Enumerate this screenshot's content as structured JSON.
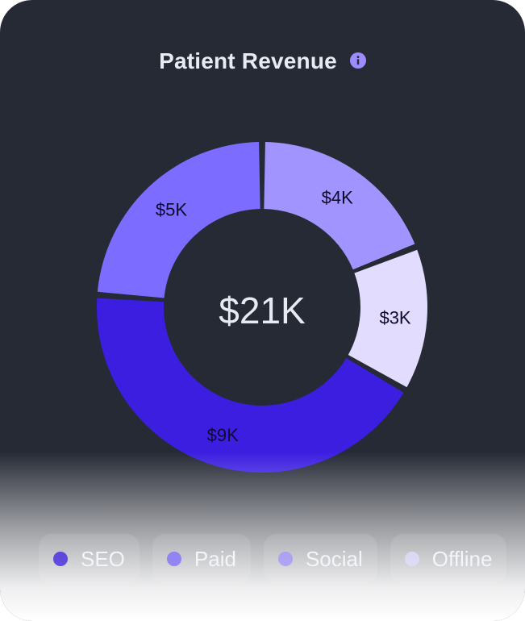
{
  "card": {
    "title": "Patient Revenue",
    "info_icon": "info-icon",
    "info_color": "#9d8cff"
  },
  "chart_data": {
    "type": "pie",
    "donut": true,
    "total_label": "$21K",
    "categories": [
      "SEO",
      "Paid",
      "Social",
      "Offline"
    ],
    "values": [
      9,
      5,
      4,
      3
    ],
    "value_labels": [
      "$9K",
      "$5K",
      "$4K",
      "$3K"
    ],
    "colors": [
      "#3b1ee0",
      "#7c6cff",
      "#a194ff",
      "#e2ddff"
    ],
    "legend_position": "bottom"
  },
  "legend": {
    "items": [
      {
        "label": "SEO",
        "color": "#3b1ee0"
      },
      {
        "label": "Paid",
        "color": "#7c6cff"
      },
      {
        "label": "Social",
        "color": "#a194ff"
      },
      {
        "label": "Offline",
        "color": "#e2ddff"
      }
    ]
  }
}
